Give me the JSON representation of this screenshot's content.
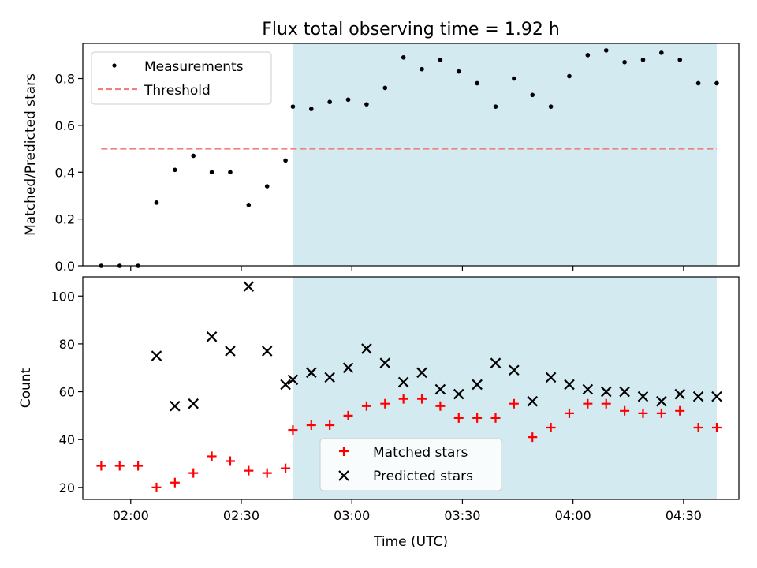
{
  "chart_data": [
    {
      "type": "scatter",
      "title": "Flux total observing time = 1.92 h",
      "xlabel": "",
      "ylabel": "Matched/Predicted stars",
      "xlim": [
        "01:47",
        "04:45"
      ],
      "ylim": [
        0,
        0.95
      ],
      "yticks": [
        0.0,
        0.2,
        0.4,
        0.6,
        0.8
      ],
      "yticklabels": [
        "0.0",
        "0.2",
        "0.4",
        "0.6",
        "0.8"
      ],
      "xticks": [
        "02:00",
        "02:30",
        "03:00",
        "03:30",
        "04:00",
        "04:30"
      ],
      "grid": false,
      "legend": "top-left",
      "shaded_region": {
        "start": "02:44",
        "end": "04:39",
        "color": "#d3eaf1"
      },
      "series": [
        {
          "name": "Measurements",
          "marker": "dot",
          "color": "#000000",
          "x": [
            "01:52",
            "01:57",
            "02:02",
            "02:07",
            "02:12",
            "02:17",
            "02:22",
            "02:27",
            "02:32",
            "02:37",
            "02:42",
            "02:44",
            "02:49",
            "02:54",
            "02:59",
            "03:04",
            "03:09",
            "03:14",
            "03:19",
            "03:24",
            "03:29",
            "03:34",
            "03:39",
            "03:44",
            "03:49",
            "03:54",
            "03:59",
            "04:04",
            "04:09",
            "04:14",
            "04:19",
            "04:24",
            "04:29",
            "04:34",
            "04:39"
          ],
          "y": [
            0.0,
            0.0,
            0.0,
            0.27,
            0.41,
            0.47,
            0.4,
            0.4,
            0.26,
            0.34,
            0.45,
            0.68,
            0.67,
            0.7,
            0.71,
            0.69,
            0.76,
            0.89,
            0.84,
            0.88,
            0.83,
            0.78,
            0.68,
            0.8,
            0.73,
            0.68,
            0.81,
            0.9,
            0.92,
            0.87,
            0.88,
            0.91,
            0.88,
            0.78,
            0.78
          ]
        },
        {
          "name": "Threshold",
          "marker": "dashed-line",
          "color": "#f08080",
          "x": [
            "01:52",
            "04:39"
          ],
          "y": [
            0.5,
            0.5
          ]
        }
      ]
    },
    {
      "type": "scatter",
      "title": "",
      "xlabel": "Time (UTC)",
      "ylabel": "Count",
      "xlim": [
        "01:47",
        "04:45"
      ],
      "ylim": [
        15,
        108
      ],
      "yticks": [
        20,
        40,
        60,
        80,
        100
      ],
      "yticklabels": [
        "20",
        "40",
        "60",
        "80",
        "100"
      ],
      "xticks": [
        "02:00",
        "02:30",
        "03:00",
        "03:30",
        "04:00",
        "04:30"
      ],
      "grid": false,
      "legend": "bottom-center",
      "shaded_region": {
        "start": "02:44",
        "end": "04:39",
        "color": "#d3eaf1"
      },
      "series": [
        {
          "name": "Matched stars",
          "marker": "plus",
          "color": "#ff0000",
          "x": [
            "01:52",
            "01:57",
            "02:02",
            "02:07",
            "02:12",
            "02:17",
            "02:22",
            "02:27",
            "02:32",
            "02:37",
            "02:42",
            "02:44",
            "02:49",
            "02:54",
            "02:59",
            "03:04",
            "03:09",
            "03:14",
            "03:19",
            "03:24",
            "03:29",
            "03:34",
            "03:39",
            "03:44",
            "03:49",
            "03:54",
            "03:59",
            "04:04",
            "04:09",
            "04:14",
            "04:19",
            "04:24",
            "04:29",
            "04:34",
            "04:39"
          ],
          "y": [
            29,
            29,
            29,
            20,
            22,
            26,
            33,
            31,
            27,
            26,
            28,
            44,
            46,
            46,
            50,
            54,
            55,
            57,
            57,
            54,
            49,
            49,
            49,
            55,
            41,
            45,
            51,
            55,
            55,
            52,
            51,
            51,
            52,
            45,
            45
          ]
        },
        {
          "name": "Predicted stars",
          "marker": "x",
          "color": "#000000",
          "x": [
            "02:07",
            "02:12",
            "02:17",
            "02:22",
            "02:27",
            "02:32",
            "02:37",
            "02:42",
            "02:44",
            "02:49",
            "02:54",
            "02:59",
            "03:04",
            "03:09",
            "03:14",
            "03:19",
            "03:24",
            "03:29",
            "03:34",
            "03:39",
            "03:44",
            "03:49",
            "03:54",
            "03:59",
            "04:04",
            "04:09",
            "04:14",
            "04:19",
            "04:24",
            "04:29",
            "04:34",
            "04:39"
          ],
          "y": [
            75,
            54,
            55,
            83,
            77,
            104,
            77,
            63,
            65,
            68,
            66,
            70,
            78,
            72,
            64,
            68,
            61,
            59,
            63,
            72,
            69,
            56,
            66,
            63,
            61,
            60,
            60,
            58,
            56,
            59,
            58,
            58
          ]
        }
      ]
    }
  ]
}
